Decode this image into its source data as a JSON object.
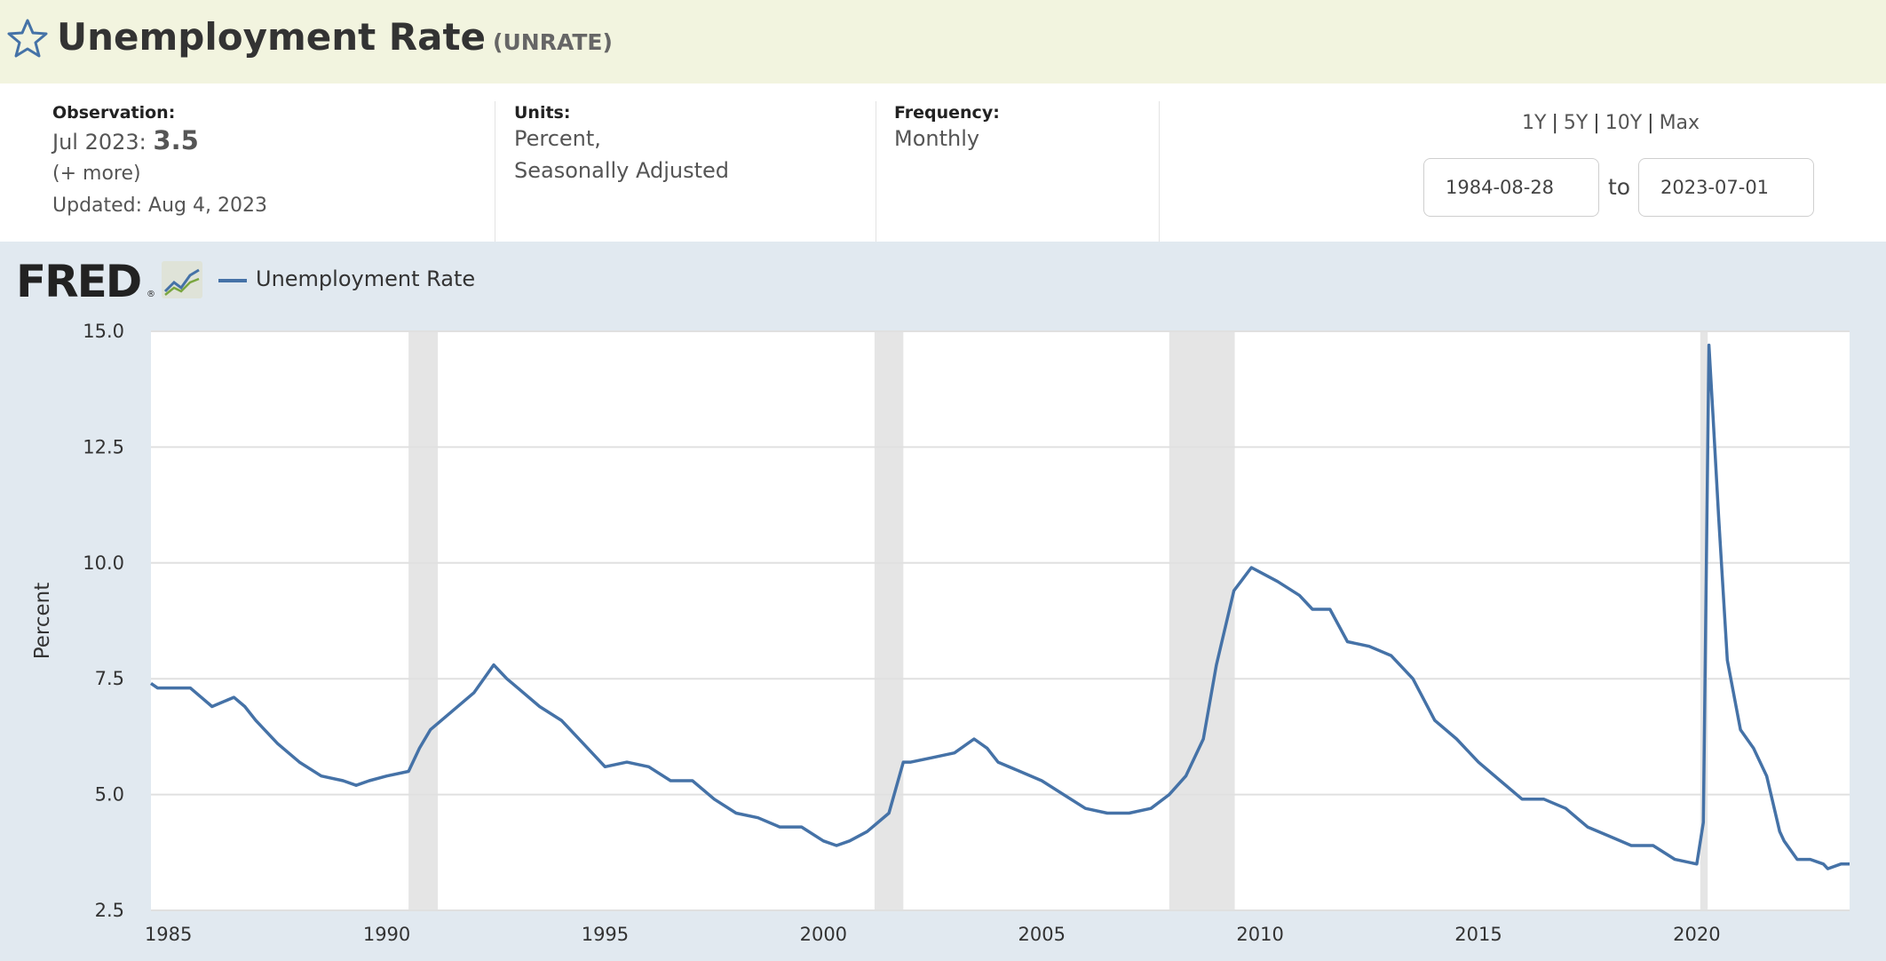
{
  "header": {
    "title": "Unemployment Rate",
    "series_id": "(UNRATE)"
  },
  "meta": {
    "observation_label": "Observation:",
    "observation_date": "Jul 2023:",
    "observation_value": "3.5",
    "more_link": "(+ more)",
    "updated": "Updated: Aug 4, 2023",
    "units_label": "Units:",
    "units_line1": "Percent,",
    "units_line2": "Seasonally Adjusted",
    "frequency_label": "Frequency:",
    "frequency_value": "Monthly"
  },
  "range": {
    "links": [
      "1Y",
      "5Y",
      "10Y",
      "Max"
    ],
    "separator": "|",
    "start": "1984-08-28",
    "to_label": "to",
    "end": "2023-07-01"
  },
  "logo": {
    "text": "FRED",
    "reg": "®"
  },
  "colors": {
    "line": "#4572a7",
    "recession": "#e5e5e5",
    "chart_bg": "#e1e9f0",
    "header_bg": "#f2f4df"
  },
  "chart_data": {
    "type": "line",
    "title": "Unemployment Rate",
    "legend": [
      "Unemployment Rate"
    ],
    "ylabel": "Percent",
    "xlabel": "",
    "ylim": [
      2.5,
      15.0
    ],
    "xlim": [
      1984.6,
      2023.5
    ],
    "x_ticks": [
      1985,
      1990,
      1995,
      2000,
      2005,
      2010,
      2015,
      2020
    ],
    "y_ticks": [
      2.5,
      5.0,
      7.5,
      10.0,
      12.5,
      15.0
    ],
    "y_tick_labels": [
      "2.5",
      "5.0",
      "7.5",
      "10.0",
      "12.5",
      "15.0"
    ],
    "recessions": [
      [
        1990.5,
        1991.17
      ],
      [
        2001.17,
        2001.83
      ],
      [
        2007.92,
        2009.42
      ],
      [
        2020.08,
        2020.25
      ]
    ],
    "series": [
      {
        "name": "Unemployment Rate",
        "x": [
          1984.6,
          1984.75,
          1985.0,
          1985.5,
          1985.75,
          1986.0,
          1986.5,
          1986.75,
          1987.0,
          1987.5,
          1988.0,
          1988.5,
          1989.0,
          1989.3,
          1989.6,
          1990.0,
          1990.5,
          1990.75,
          1991.0,
          1991.5,
          1992.0,
          1992.45,
          1992.75,
          1993.0,
          1993.5,
          1994.0,
          1994.5,
          1995.0,
          1995.5,
          1996.0,
          1996.5,
          1997.0,
          1997.5,
          1998.0,
          1998.5,
          1999.0,
          1999.5,
          2000.0,
          2000.3,
          2000.6,
          2001.0,
          2001.5,
          2001.83,
          2002.0,
          2002.5,
          2003.0,
          2003.45,
          2003.75,
          2004.0,
          2004.5,
          2005.0,
          2005.5,
          2006.0,
          2006.5,
          2007.0,
          2007.5,
          2007.92,
          2008.3,
          2008.7,
          2009.0,
          2009.4,
          2009.8,
          2010.0,
          2010.4,
          2010.9,
          2011.2,
          2011.6,
          2012.0,
          2012.5,
          2013.0,
          2013.5,
          2014.0,
          2014.5,
          2015.0,
          2015.5,
          2016.0,
          2016.5,
          2017.0,
          2017.5,
          2018.0,
          2018.5,
          2019.0,
          2019.5,
          2020.0,
          2020.15,
          2020.28,
          2020.37,
          2020.5,
          2020.7,
          2021.0,
          2021.3,
          2021.6,
          2021.9,
          2022.0,
          2022.3,
          2022.6,
          2022.9,
          2023.0,
          2023.3,
          2023.5
        ],
        "values": [
          7.4,
          7.3,
          7.3,
          7.3,
          7.1,
          6.9,
          7.1,
          6.9,
          6.6,
          6.1,
          5.7,
          5.4,
          5.3,
          5.2,
          5.3,
          5.4,
          5.5,
          6.0,
          6.4,
          6.8,
          7.2,
          7.8,
          7.5,
          7.3,
          6.9,
          6.6,
          6.1,
          5.6,
          5.7,
          5.6,
          5.3,
          5.3,
          4.9,
          4.6,
          4.5,
          4.3,
          4.3,
          4.0,
          3.9,
          4.0,
          4.2,
          4.6,
          5.7,
          5.7,
          5.8,
          5.9,
          6.2,
          6.0,
          5.7,
          5.5,
          5.3,
          5.0,
          4.7,
          4.6,
          4.6,
          4.7,
          5.0,
          5.4,
          6.2,
          7.8,
          9.4,
          9.9,
          9.8,
          9.6,
          9.3,
          9.0,
          9.0,
          8.3,
          8.2,
          8.0,
          7.5,
          6.6,
          6.2,
          5.7,
          5.3,
          4.9,
          4.9,
          4.7,
          4.3,
          4.1,
          3.9,
          3.9,
          3.6,
          3.5,
          4.4,
          14.7,
          13.2,
          11.0,
          7.9,
          6.4,
          6.0,
          5.4,
          4.2,
          4.0,
          3.6,
          3.6,
          3.5,
          3.4,
          3.5,
          3.5
        ]
      }
    ]
  }
}
